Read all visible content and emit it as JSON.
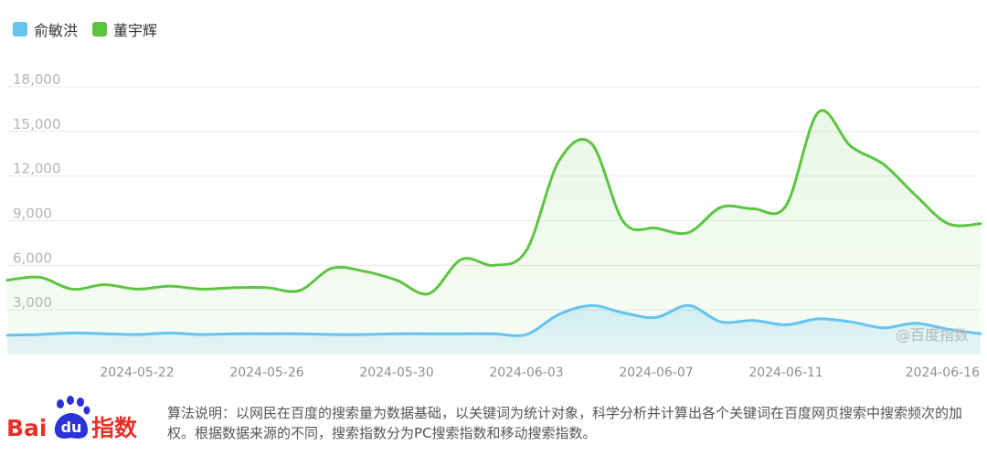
{
  "colors": {
    "series_blue": "#65c3f0",
    "series_green": "#5cc540",
    "area_blue": "#e6f4fb",
    "area_green": "#eefaea",
    "grid": "#e8e8e8",
    "logo_red": "#e4322b",
    "logo_blue": "#2b32d8"
  },
  "legend": {
    "items": [
      {
        "label": "俞敏洪",
        "color": "#65c3f0"
      },
      {
        "label": "董宇辉",
        "color": "#5cc540"
      }
    ]
  },
  "watermark": "@百度指数",
  "footer": {
    "logo_text_latin": "Bai",
    "logo_text_paw": "du",
    "logo_text_cn": "指数",
    "note": "算法说明：以网民在百度的搜索量为数据基础，以关键词为统计对象，科学分析并计算出各个关键词在百度网页搜索中搜索频次的加权。根据数据来源的不同，搜索指数分为PC搜索指数和移动搜索指数。"
  },
  "chart_data": {
    "type": "area",
    "x_start": "2024-05-18",
    "x_end": "2024-06-17",
    "x_ticks": [
      "2024-05-22",
      "2024-05-26",
      "2024-05-30",
      "2024-06-03",
      "2024-06-07",
      "2024-06-11",
      "2024-06-16"
    ],
    "y_ticks": [
      "3,000",
      "6,000",
      "9,000",
      "12,000",
      "15,000",
      "18,000"
    ],
    "ylim": [
      0,
      18000
    ],
    "grid": true,
    "legend_position": "top-left",
    "series": [
      {
        "name": "俞敏洪",
        "color": "#65c3f0",
        "values": [
          1300,
          1350,
          1450,
          1400,
          1350,
          1450,
          1350,
          1400,
          1400,
          1400,
          1350,
          1350,
          1400,
          1400,
          1400,
          1400,
          1350,
          2700,
          3300,
          2800,
          2500,
          3300,
          2200,
          2300,
          2000,
          2400,
          2200,
          1800,
          2100,
          1700,
          1400
        ]
      },
      {
        "name": "董宇辉",
        "color": "#5cc540",
        "values": [
          5000,
          5200,
          4400,
          4700,
          4400,
          4600,
          4400,
          4500,
          4500,
          4300,
          5800,
          5600,
          5000,
          4100,
          6400,
          6000,
          7000,
          13000,
          14200,
          8900,
          8500,
          8200,
          9900,
          9800,
          10000,
          16300,
          14000,
          12800,
          10700,
          8800,
          8800
        ]
      }
    ]
  }
}
